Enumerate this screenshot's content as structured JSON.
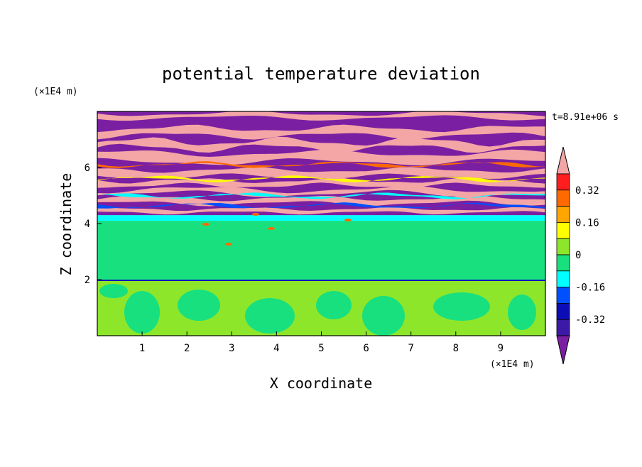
{
  "chart_data": {
    "type": "heatmap",
    "title": "potential temperature deviation",
    "xlabel": "X coordinate",
    "ylabel": "Z coordinate",
    "x_unit": "(×1E4 m)",
    "y_unit": "(×1E4 m)",
    "time_label": "t=8.91e+06 s",
    "xlim": [
      0,
      10
    ],
    "ylim": [
      0,
      8
    ],
    "x_ticks": [
      1,
      2,
      3,
      4,
      5,
      6,
      7,
      8,
      9
    ],
    "y_ticks": [
      2,
      4,
      6
    ],
    "grid": false,
    "colorbar": {
      "placement": "right",
      "tick_labels": [
        "0.32",
        "0.16",
        "0",
        "-0.16",
        "-0.32"
      ],
      "levels": [
        -0.4,
        -0.32,
        -0.24,
        -0.16,
        -0.08,
        0,
        0.08,
        0.16,
        0.24,
        0.32,
        0.4
      ],
      "colors": [
        "#7b1fa2",
        "#3c1aa6",
        "#0d0db8",
        "#0050ff",
        "#00ffff",
        "#18e07f",
        "#8ee62b",
        "#ffff00",
        "#ffa500",
        "#ff6a00",
        "#ff1e1e",
        "#f4a6a6"
      ]
    },
    "layers": [
      {
        "z_range": [
          0,
          1.95
        ],
        "dominant_value_range": [
          0.0,
          0.08
        ],
        "color": "#8ee62b",
        "secondary_color": "#18e07f"
      },
      {
        "z_range": [
          1.95,
          2.0
        ],
        "dominant_value_range": [
          -0.32,
          -0.16
        ],
        "color": "#0d0db8"
      },
      {
        "z_range": [
          2.0,
          4.1
        ],
        "dominant_value_range": [
          -0.08,
          0.08
        ],
        "color": "#18e07f",
        "secondary_color": "#8ee62b"
      },
      {
        "z_range": [
          4.1,
          4.3
        ],
        "dominant_value_range": [
          -0.16,
          -0.08
        ],
        "color": "#00ffff"
      },
      {
        "z_range": [
          4.3,
          8.0
        ],
        "dominant_value_range": [
          -0.4,
          0.4
        ],
        "color": "#7b1fa2",
        "secondary_color": "#f4a6a6"
      }
    ]
  },
  "colors": {
    "pink": "#f4a6a6",
    "purple": "#7b1fa2",
    "green": "#8ee62b",
    "teal": "#18e07f",
    "cyan": "#00ffff",
    "blue": "#0d0db8"
  }
}
